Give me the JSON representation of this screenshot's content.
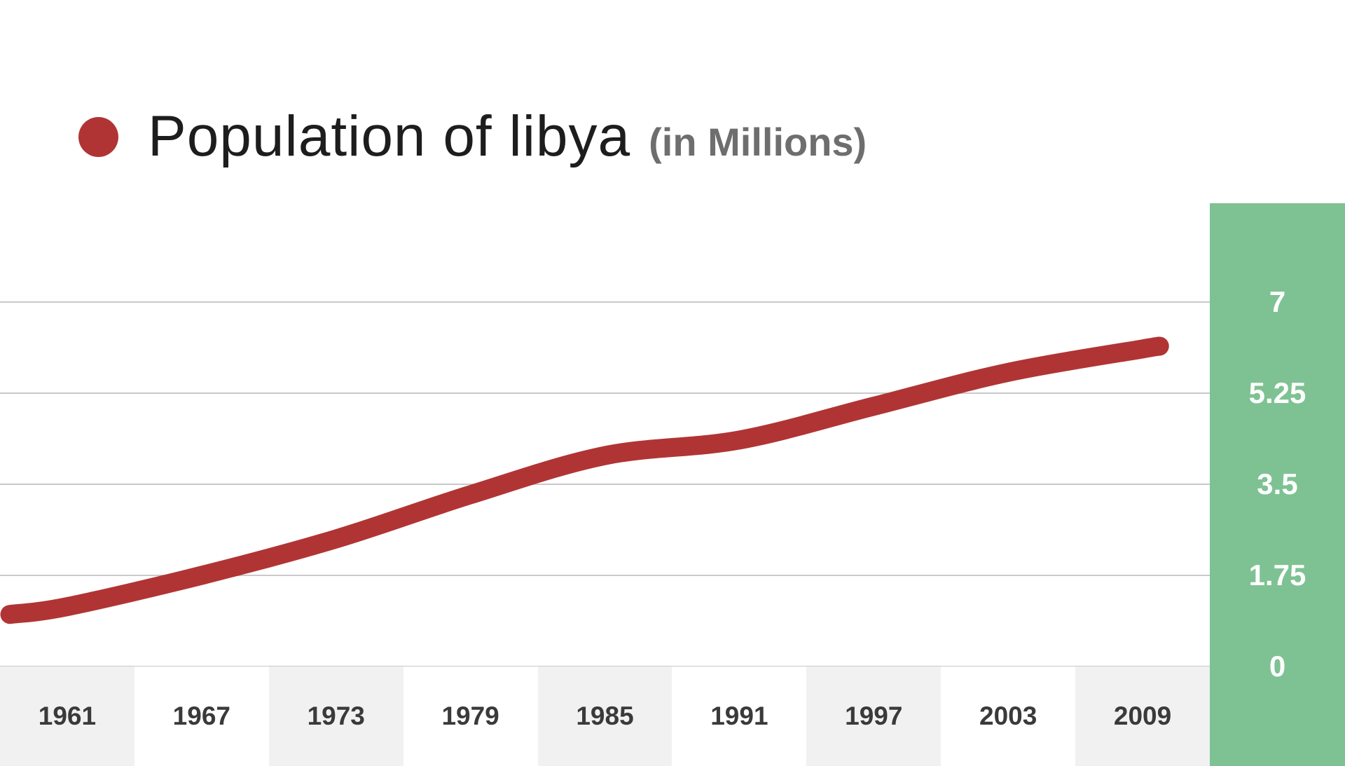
{
  "header": {
    "title": "Population of libya",
    "subtitle": "(in Millions)"
  },
  "colors": {
    "line": "#b13434",
    "legend_dot": "#b13434",
    "panel_green": "#7ec293",
    "band_grey": "#f1f1f1",
    "band_white": "#ffffff",
    "gridline": "#c9c9c9",
    "year_label": "#3a3a3a",
    "ytick_label": "#ffffff",
    "title": "#1d1d1d",
    "subtitle": "#6e6e6e"
  },
  "chart_data": {
    "type": "line",
    "title": "Population of libya (in Millions)",
    "categories": [
      "1961",
      "1967",
      "1973",
      "1979",
      "1985",
      "1991",
      "1997",
      "2003",
      "2009"
    ],
    "series": [
      {
        "name": "Population of libya",
        "values": [
          1.15,
          1.75,
          2.45,
          3.3,
          4.05,
          4.35,
          5.0,
          5.65,
          6.1
        ]
      }
    ],
    "line_extension": {
      "left_value": 1.0,
      "right_value": 6.15
    },
    "ylim": [
      0,
      7
    ],
    "yticks": [
      7,
      5.25,
      3.5,
      1.75,
      0
    ],
    "xlabel": "",
    "ylabel": "",
    "grid": true,
    "legend_position": "top-left",
    "x_band_pattern": [
      "grey",
      "white",
      "grey",
      "white",
      "grey",
      "white",
      "grey",
      "white",
      "grey"
    ]
  }
}
